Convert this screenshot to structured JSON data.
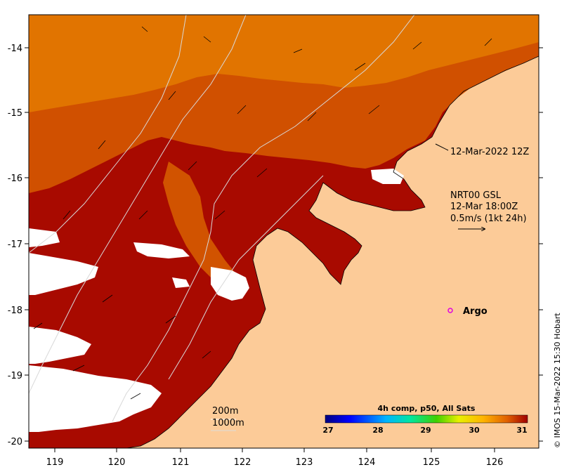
{
  "map": {
    "type": "sea-surface-temperature",
    "lon_ticks": [
      "119",
      "120",
      "121",
      "122",
      "123",
      "124",
      "125",
      "126"
    ],
    "lat_ticks": [
      "-14",
      "-15",
      "-16",
      "-17",
      "-18",
      "-19",
      "-20"
    ],
    "lon_range": [
      118.6,
      126.7
    ],
    "lat_range": [
      -20.1,
      -13.5
    ]
  },
  "annotations": {
    "date_label": "12-Mar-2022 12Z",
    "current_source": "NRT00 GSL",
    "current_time": "12-Mar 18:00Z",
    "scale_label": "0.5m/s (1kt 24h)",
    "argo_label": "Argo",
    "depth_200": "200m",
    "depth_1000": "1000m",
    "credit": "© IMOS 15-Mar-2022 15:30 Hobart"
  },
  "colorbar": {
    "title": "4h comp, p50, All Sats",
    "ticks": [
      "27",
      "28",
      "29",
      "30",
      "31"
    ],
    "range": [
      27,
      31
    ]
  },
  "colors": {
    "land": "#fccb98",
    "sst_hot": "#a80a00",
    "sst_warm": "#c83c00",
    "sst_mid": "#e07a00",
    "argo": "#e000e0"
  }
}
